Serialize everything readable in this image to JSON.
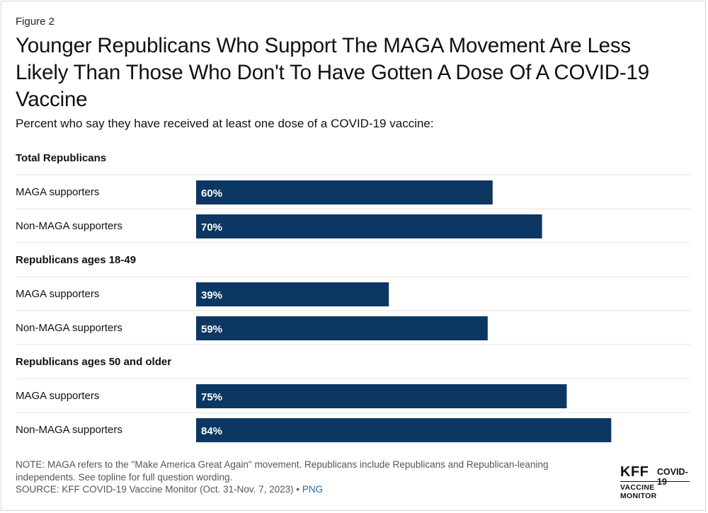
{
  "figure_label": "Figure 2",
  "title": "Younger Republicans Who Support The MAGA Movement Are Less Likely Than Those Who Don't To Have Gotten A Dose Of A COVID-19 Vaccine",
  "subtitle": "Percent who say they have received at least one dose of a COVID-19 vaccine:",
  "chart_data": {
    "type": "bar",
    "orientation": "horizontal",
    "title": "Younger Republicans Who Support The MAGA Movement Are Less Likely Than Those Who Don't To Have Gotten A Dose Of A COVID-19 Vaccine",
    "subtitle": "Percent who say they have received at least one dose of a COVID-19 vaccine:",
    "xlim": [
      0,
      100
    ],
    "grid": false,
    "bar_color": "#0c3763",
    "label_color": "#ffffff",
    "groups": [
      {
        "name": "Total Republicans",
        "bars": [
          {
            "label": "MAGA supporters",
            "value": 60,
            "value_label": "60%"
          },
          {
            "label": "Non-MAGA supporters",
            "value": 70,
            "value_label": "70%"
          }
        ]
      },
      {
        "name": "Republicans ages 18-49",
        "bars": [
          {
            "label": "MAGA supporters",
            "value": 39,
            "value_label": "39%"
          },
          {
            "label": "Non-MAGA supporters",
            "value": 59,
            "value_label": "59%"
          }
        ]
      },
      {
        "name": "Republicans ages 50 and older",
        "bars": [
          {
            "label": "MAGA supporters",
            "value": 75,
            "value_label": "75%"
          },
          {
            "label": "Non-MAGA supporters",
            "value": 84,
            "value_label": "84%"
          }
        ]
      }
    ]
  },
  "note": "NOTE: MAGA refers to the \"Make America Great Again\" movement. Republicans include Republicans and Republican-leaning independents. See topline for full question wording.",
  "source": "SOURCE: KFF COVID-19 Vaccine Monitor (Oct. 31-Nov. 7, 2023) •",
  "png_link": "PNG",
  "logo": {
    "kff": "KFF",
    "covid": "COVID-19",
    "monitor": "VACCINE MONITOR"
  }
}
